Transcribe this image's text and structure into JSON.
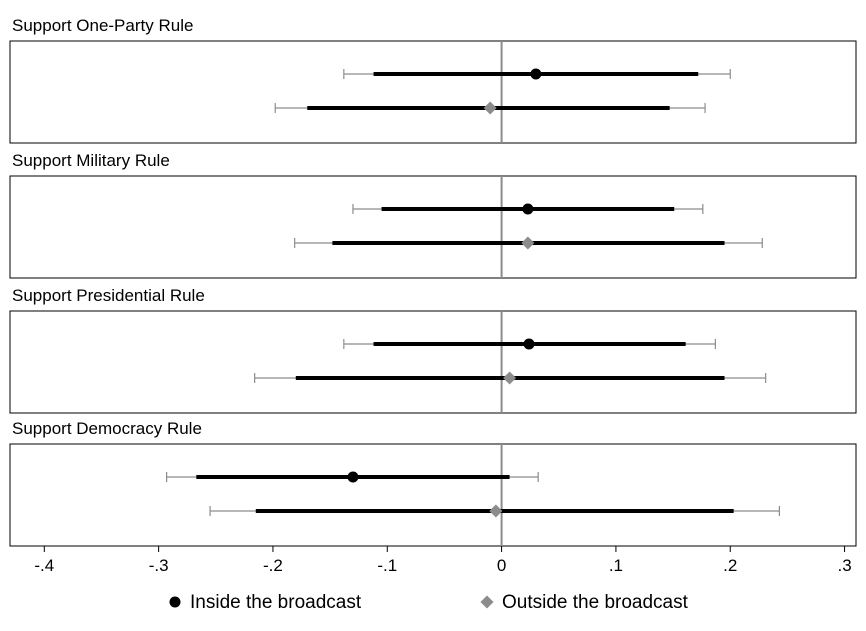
{
  "chart_data": {
    "type": "scatter",
    "subtype": "coefficient-plot",
    "x_ticks": [
      -0.4,
      -0.3,
      -0.2,
      -0.1,
      0,
      0.1,
      0.2,
      0.3
    ],
    "x_tick_labels": [
      "-.4",
      "-.3",
      "-.2",
      "-.1",
      "0",
      ".1",
      ".2",
      ".3"
    ],
    "xlim": [
      -0.43,
      0.31
    ],
    "reference_line_x": 0,
    "grid": false,
    "legend_position": "bottom",
    "series": [
      {
        "name": "Inside the broadcast",
        "marker": "circle",
        "color": "#000000"
      },
      {
        "name": "Outside the broadcast",
        "marker": "diamond",
        "color": "#8c8c8c"
      }
    ],
    "panels": [
      {
        "title": "Support One-Party Rule",
        "estimates": [
          {
            "series": "Inside the broadcast",
            "point": 0.03,
            "ci90": [
              -0.112,
              0.172
            ],
            "ci95": [
              -0.138,
              0.2
            ]
          },
          {
            "series": "Outside the broadcast",
            "point": -0.01,
            "ci90": [
              -0.17,
              0.147
            ],
            "ci95": [
              -0.198,
              0.178
            ]
          }
        ]
      },
      {
        "title": "Support Military Rule",
        "estimates": [
          {
            "series": "Inside the broadcast",
            "point": 0.023,
            "ci90": [
              -0.105,
              0.151
            ],
            "ci95": [
              -0.13,
              0.176
            ]
          },
          {
            "series": "Outside the broadcast",
            "point": 0.023,
            "ci90": [
              -0.148,
              0.195
            ],
            "ci95": [
              -0.181,
              0.228
            ]
          }
        ]
      },
      {
        "title": "Support Presidential Rule",
        "estimates": [
          {
            "series": "Inside the broadcast",
            "point": 0.024,
            "ci90": [
              -0.112,
              0.161
            ],
            "ci95": [
              -0.138,
              0.187
            ]
          },
          {
            "series": "Outside the broadcast",
            "point": 0.007,
            "ci90": [
              -0.18,
              0.195
            ],
            "ci95": [
              -0.216,
              0.231
            ]
          }
        ]
      },
      {
        "title": "Support Democracy Rule",
        "estimates": [
          {
            "series": "Inside the broadcast",
            "point": -0.13,
            "ci90": [
              -0.267,
              0.007
            ],
            "ci95": [
              -0.293,
              0.032
            ]
          },
          {
            "series": "Outside the broadcast",
            "point": -0.005,
            "ci90": [
              -0.215,
              0.203
            ],
            "ci95": [
              -0.255,
              0.243
            ]
          }
        ]
      }
    ]
  },
  "colors": {
    "inside": "#000000",
    "outside": "#8c8c8c",
    "ci95_line": "#8c8c8c",
    "reference_line": "#8c8c8c",
    "panel_border": "#000000"
  }
}
